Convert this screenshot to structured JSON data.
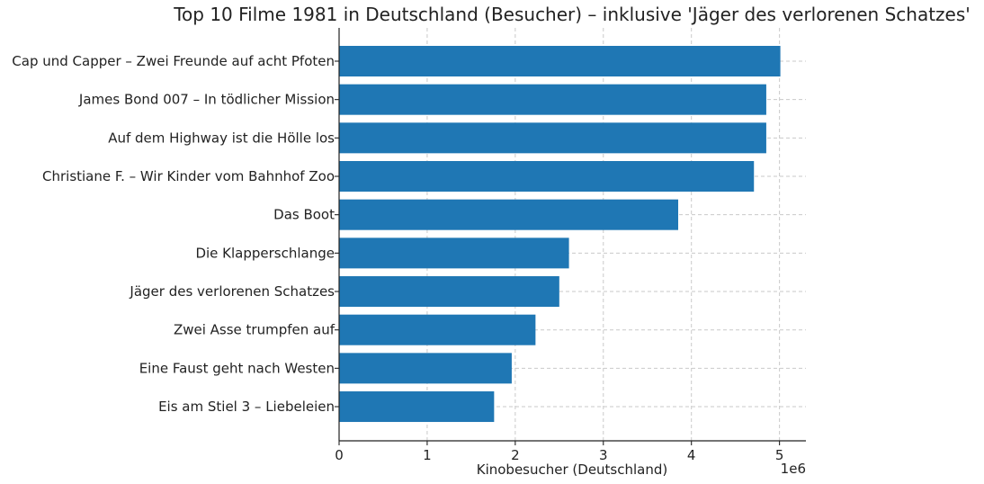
{
  "chart_data": {
    "type": "bar",
    "orientation": "horizontal",
    "title": "Top 10 Filme 1981 in Deutschland (Besucher) – inklusive 'Jäger des verlorenen Schatzes'",
    "xlabel": "Kinobesucher (Deutschland)",
    "ylabel": "",
    "xlim": [
      0,
      5300000
    ],
    "x_scale_label": "1e6",
    "x_ticks": [
      0,
      1000000,
      2000000,
      3000000,
      4000000,
      5000000
    ],
    "x_tick_labels": [
      "0",
      "1",
      "2",
      "3",
      "4",
      "5"
    ],
    "categories": [
      "Cap und Capper – Zwei Freunde auf acht Pfoten",
      "James Bond 007 – In tödlicher Mission",
      "Auf dem Highway ist die Hölle los",
      "Christiane F. – Wir Kinder vom Bahnhof Zoo",
      "Das Boot",
      "Die Klapperschlange",
      "Jäger des verlorenen Schatzes",
      "Zwei Asse trumpfen auf",
      "Eine Faust geht nach Westen",
      "Eis am Stiel 3 – Liebeleien"
    ],
    "values": [
      5010000,
      4850000,
      4850000,
      4710000,
      3850000,
      2610000,
      2500000,
      2230000,
      1960000,
      1760000
    ],
    "bar_color": "#1f77b4",
    "grid": true
  }
}
